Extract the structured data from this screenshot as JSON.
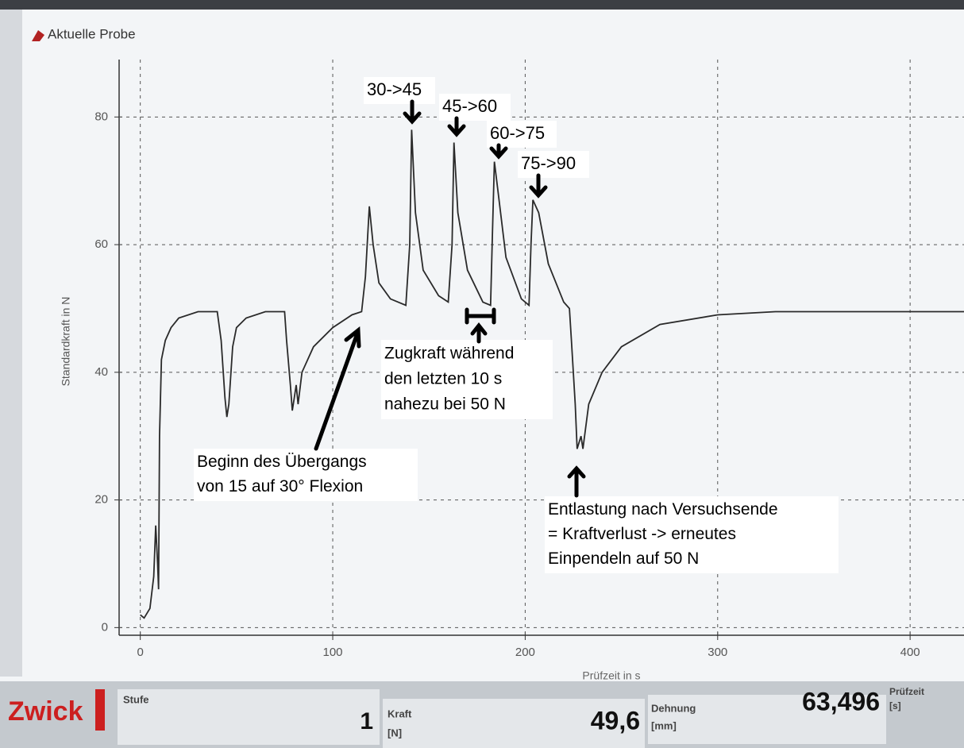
{
  "chart_data": {
    "type": "line",
    "title": "Aktuelle Probe",
    "y_label": "Standardkraft in N",
    "x_label": "Prüfzeit in s",
    "color": "#2a2a2a",
    "grid": true,
    "xlim": [
      -11,
      428
    ],
    "ylim": [
      -1.2,
      89
    ],
    "xticks": [
      0,
      100,
      200,
      300,
      400
    ],
    "yticks": [
      0,
      20,
      40,
      60,
      80
    ],
    "x": [
      0,
      2,
      5,
      7,
      8,
      9,
      9.5,
      10,
      11,
      13,
      16,
      20,
      30,
      40,
      42,
      44,
      45,
      46,
      48,
      50,
      55,
      65,
      75,
      76,
      78,
      79,
      80,
      81,
      82,
      84,
      90,
      100,
      110,
      115,
      117,
      119,
      121,
      124,
      130,
      138,
      140,
      141,
      143,
      147,
      155,
      160,
      162,
      163,
      165,
      170,
      178,
      182,
      183,
      184,
      186,
      190,
      198,
      202,
      203,
      204,
      207,
      212,
      220,
      223,
      224,
      226,
      227,
      229,
      230,
      233,
      240,
      250,
      270,
      300,
      330,
      428
    ],
    "values": [
      2,
      1.5,
      3,
      8,
      16,
      10,
      6,
      30,
      42,
      45,
      47,
      48.5,
      49.5,
      49.5,
      45,
      36,
      33,
      35,
      44,
      47,
      48.5,
      49.5,
      49.5,
      45,
      38,
      34,
      36,
      38,
      35,
      40,
      44,
      47,
      49,
      49.5,
      55,
      66,
      60,
      54,
      51.5,
      50.5,
      60,
      78,
      65,
      56,
      52,
      51,
      60,
      76,
      65,
      56,
      51,
      50.5,
      62,
      73,
      68,
      58,
      51.5,
      50.5,
      60,
      67,
      65,
      57,
      51,
      50,
      45,
      35,
      28,
      30,
      28,
      35,
      40,
      44,
      47.5,
      49,
      49.5,
      49.5
    ],
    "annotations": [
      {
        "lines": [
          "30->45"
        ]
      },
      {
        "lines": [
          "45->60"
        ]
      },
      {
        "lines": [
          "60->75"
        ]
      },
      {
        "lines": [
          "75->90"
        ]
      },
      {
        "lines": [
          "Zugkraft während",
          "den letzten 10 s",
          "nahezu bei 50 N"
        ]
      },
      {
        "lines": [
          "Beginn des Übergangs",
          "von 15 auf 30° Flexion"
        ]
      },
      {
        "lines": [
          "Entlastung nach Versuchsende",
          "= Kraftverlust -> erneutes",
          "Einpendeln auf 50 N"
        ]
      }
    ]
  },
  "status_bar": {
    "brand": "Zwick",
    "stufe_label": "Stufe",
    "stufe_value": "1",
    "kraft_label": "Kraft",
    "kraft_unit": "[N]",
    "kraft_value": "49,6",
    "dehnung_label": "Dehnung",
    "dehnung_unit": "[mm]",
    "dehnung_value": "63,496",
    "pruefzeit_label": "Prüfzeit",
    "pruefzeit_unit": "[s]"
  }
}
